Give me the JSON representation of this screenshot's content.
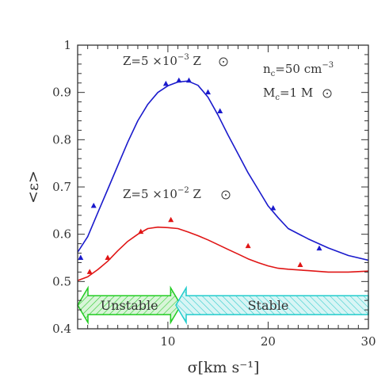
{
  "chart_data": {
    "type": "line",
    "xlabel": "σ[km s⁻¹]",
    "ylabel": "<ε>",
    "xlim": [
      1,
      30
    ],
    "ylim": [
      0.4,
      1.0
    ],
    "xticks": [
      10,
      20,
      30
    ],
    "yticks": [
      0.4,
      0.5,
      0.6,
      0.7,
      0.8,
      0.9,
      1.0
    ],
    "ytick_labels": [
      "0.4",
      "0.5",
      "0.6",
      "0.7",
      "0.8",
      "0.9",
      "1"
    ],
    "series": [
      {
        "name": "Z=5 ×10⁻³ Z☉",
        "color": "#1a1acc",
        "marker": "triangle",
        "curve_x": [
          1,
          2,
          3,
          4,
          5,
          6,
          7,
          8,
          9,
          10,
          11,
          12,
          13,
          14,
          15,
          16,
          17,
          18,
          19,
          20,
          21,
          22,
          24,
          26,
          28,
          30
        ],
        "curve_y": [
          0.562,
          0.595,
          0.645,
          0.695,
          0.745,
          0.795,
          0.84,
          0.875,
          0.9,
          0.914,
          0.922,
          0.924,
          0.915,
          0.89,
          0.852,
          0.81,
          0.77,
          0.73,
          0.695,
          0.66,
          0.635,
          0.612,
          0.59,
          0.571,
          0.555,
          0.545
        ],
        "points_x": [
          1.3,
          2.6,
          9.8,
          11.1,
          12.1,
          14.0,
          15.2,
          20.5,
          25.1
        ],
        "points_y": [
          0.55,
          0.66,
          0.918,
          0.925,
          0.925,
          0.9,
          0.86,
          0.655,
          0.57
        ]
      },
      {
        "name": "Z=5 ×10⁻² Z☉",
        "color": "#e01515",
        "marker": "triangle",
        "curve_x": [
          1,
          2,
          3,
          4,
          5,
          6,
          7,
          8,
          9,
          10,
          11,
          12,
          13,
          14,
          15,
          16,
          17,
          18,
          19,
          20,
          21,
          22,
          24,
          26,
          28,
          30
        ],
        "curve_y": [
          0.502,
          0.51,
          0.525,
          0.543,
          0.565,
          0.585,
          0.6,
          0.612,
          0.615,
          0.614,
          0.612,
          0.605,
          0.597,
          0.588,
          0.578,
          0.568,
          0.558,
          0.548,
          0.54,
          0.533,
          0.528,
          0.526,
          0.523,
          0.52,
          0.52,
          0.522
        ],
        "points_x": [
          2.2,
          4.0,
          7.3,
          10.3,
          18.0,
          23.2
        ],
        "points_y": [
          0.52,
          0.55,
          0.605,
          0.63,
          0.575,
          0.535
        ]
      }
    ],
    "annotations": {
      "blue_label": {
        "base": "Z=5  ×10",
        "exp": "−3",
        "unit": " Z"
      },
      "red_label": {
        "base": "Z=5  ×10",
        "exp": "−2",
        "unit": " Z"
      },
      "nc": {
        "main": "n",
        "sub": "c",
        "rest": "=50  cm",
        "exp": "−3"
      },
      "mc": {
        "main": "M",
        "sub": "c",
        "rest": "=1  M"
      }
    },
    "regions": [
      {
        "label": "Unstable",
        "x_from": 1,
        "x_to": 11.3,
        "color": "#22cc22",
        "fill": "#c8f0c8"
      },
      {
        "label": "Stable",
        "x_from": 10.8,
        "x_to": 30,
        "color": "#22cccc",
        "fill": "#c8f0f0"
      }
    ],
    "region_y": [
      0.43,
      0.47
    ]
  }
}
